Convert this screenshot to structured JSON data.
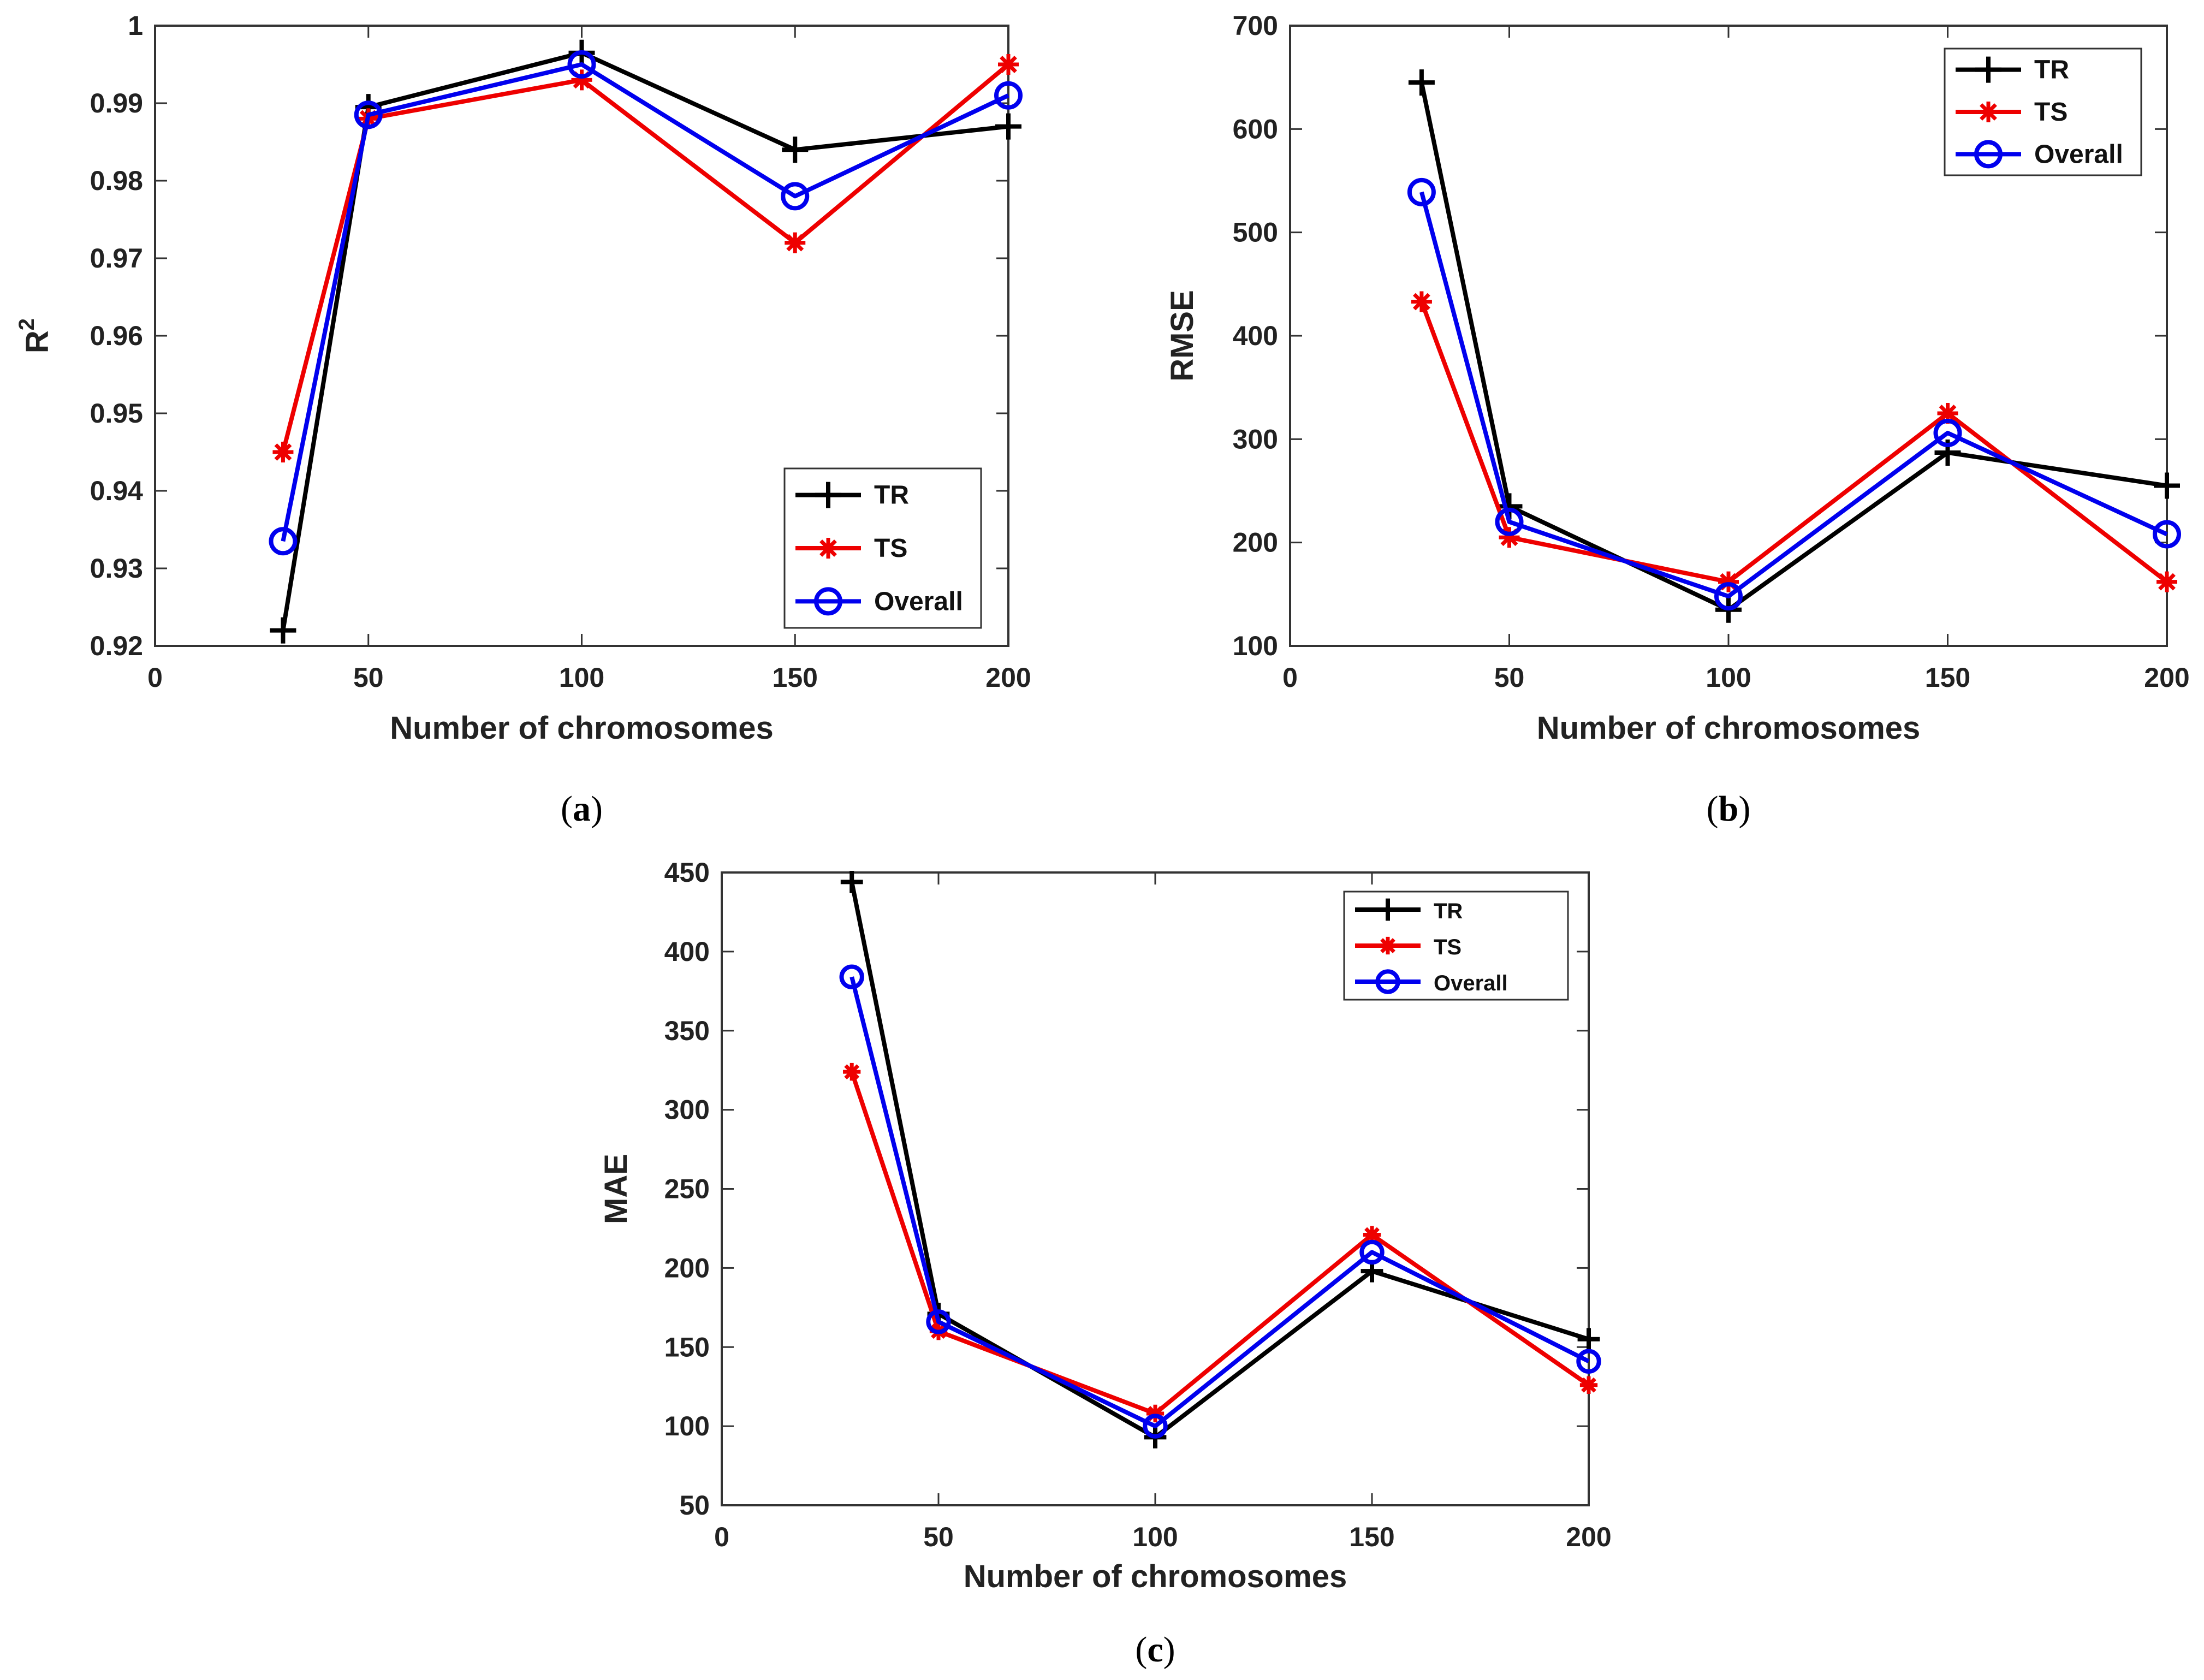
{
  "chart_data": [
    {
      "type": "line",
      "panel": "a",
      "caption": "a",
      "xlabel": "Number of chromosomes",
      "ylabel": "R",
      "ylabel_superscript": "2",
      "xlim": [
        0,
        200
      ],
      "ylim": [
        0.92,
        1.0
      ],
      "xticks": [
        0,
        50,
        100,
        150,
        200
      ],
      "yticks": [
        0.92,
        0.93,
        0.94,
        0.95,
        0.96,
        0.97,
        0.98,
        0.99,
        1.0
      ],
      "ytick_labels": [
        "0.92",
        "0.93",
        "0.94",
        "0.95",
        "0.96",
        "0.97",
        "0.98",
        "0.99",
        "1"
      ],
      "legend_position": "lower-right",
      "x": [
        30,
        50,
        100,
        150,
        200
      ],
      "series": [
        {
          "name": "TR",
          "color": "#000000",
          "marker": "plus",
          "values": [
            0.922,
            0.9895,
            0.9965,
            0.984,
            0.987
          ]
        },
        {
          "name": "TS",
          "color": "#ee0000",
          "marker": "asterisk",
          "values": [
            0.945,
            0.988,
            0.993,
            0.972,
            0.995
          ]
        },
        {
          "name": "Overall",
          "color": "#0000ee",
          "marker": "circle",
          "values": [
            0.9335,
            0.9885,
            0.995,
            0.978,
            0.991
          ]
        }
      ]
    },
    {
      "type": "line",
      "panel": "b",
      "caption": "b",
      "xlabel": "Number of chromosomes",
      "ylabel": "RMSE",
      "ylabel_superscript": "",
      "xlim": [
        0,
        200
      ],
      "ylim": [
        100,
        700
      ],
      "xticks": [
        0,
        50,
        100,
        150,
        200
      ],
      "yticks": [
        100,
        200,
        300,
        400,
        500,
        600,
        700
      ],
      "ytick_labels": [
        "100",
        "200",
        "300",
        "400",
        "500",
        "600",
        "700"
      ],
      "legend_position": "top-right",
      "x": [
        30,
        50,
        100,
        150,
        200
      ],
      "series": [
        {
          "name": "TR",
          "color": "#000000",
          "marker": "plus",
          "values": [
            645,
            235,
            135,
            287,
            255
          ]
        },
        {
          "name": "TS",
          "color": "#ee0000",
          "marker": "asterisk",
          "values": [
            433,
            205,
            162,
            325,
            162
          ]
        },
        {
          "name": "Overall",
          "color": "#0000ee",
          "marker": "circle",
          "values": [
            539,
            220,
            148,
            306,
            208
          ]
        }
      ]
    },
    {
      "type": "line",
      "panel": "c",
      "caption": "c",
      "xlabel": "Number of chromosomes",
      "ylabel": "MAE",
      "ylabel_superscript": "",
      "xlim": [
        0,
        200
      ],
      "ylim": [
        50,
        450
      ],
      "xticks": [
        0,
        50,
        100,
        150,
        200
      ],
      "yticks": [
        50,
        100,
        150,
        200,
        250,
        300,
        350,
        400,
        450
      ],
      "ytick_labels": [
        "50",
        "100",
        "150",
        "200",
        "250",
        "300",
        "350",
        "400",
        "450"
      ],
      "legend_position": "top-right",
      "x": [
        30,
        50,
        100,
        150,
        200
      ],
      "series": [
        {
          "name": "TR",
          "color": "#000000",
          "marker": "plus",
          "values": [
            444,
            171,
            93,
            198,
            155
          ]
        },
        {
          "name": "TS",
          "color": "#ee0000",
          "marker": "asterisk",
          "values": [
            324,
            160,
            108,
            221,
            126
          ]
        },
        {
          "name": "Overall",
          "color": "#0000ee",
          "marker": "circle",
          "values": [
            384,
            166,
            100,
            210,
            141
          ]
        }
      ]
    }
  ]
}
